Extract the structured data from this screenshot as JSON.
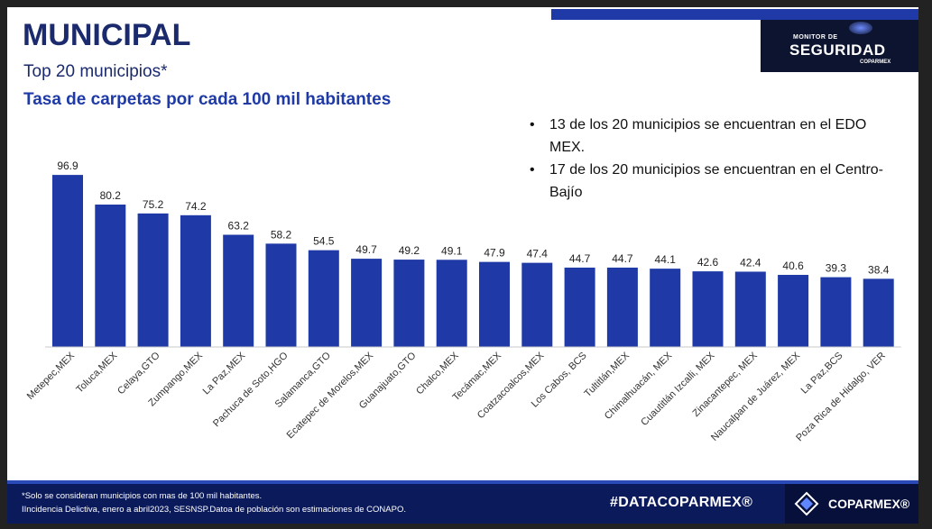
{
  "header": {
    "title": "MUNICIPAL",
    "subtitle": "Top 20 municipios*",
    "subtitle2": "Tasa de carpetas por cada 100 mil habitantes"
  },
  "logo": {
    "line1": "MONITOR DE",
    "line2": "SEGURIDAD",
    "line3": "COPARMEX"
  },
  "bullets": [
    "13 de los 20 municipios se encuentran en el EDO MEX.",
    "17 de los 20 municipios se encuentran en el Centro-Bajío"
  ],
  "bullet_symbol": "•",
  "footer": {
    "note1": "*Solo se consideran municipios con mas de 100 mil habitantes.",
    "note2": "IIncidencia Delictiva, enero a abril2023, SESNSP.Datoa de población son estimaciones de CONAPO.",
    "datacoparmex": "#DATACOPARMEX®",
    "brand": "COPARMEX®"
  },
  "colors": {
    "bar": "#1f3aa6",
    "title": "#1a2a6c"
  },
  "chart_data": {
    "type": "bar",
    "title": "Tasa de carpetas por cada 100 mil habitantes",
    "xlabel": "",
    "ylabel": "",
    "ylim": [
      0,
      100
    ],
    "grid": false,
    "categories": [
      "Metepec,MEX",
      "Toluca,MEX",
      "Celaya,GTO",
      "Zumpango,MEX",
      "La Paz,MEX",
      "Pachuca de Soto,HGO",
      "Salamanca,GTO",
      "Ecatepec de Morelos,MEX",
      "Guanajuato,GTO",
      "Chalco,MEX",
      "Tecámac,MEX",
      "Coatzacoalcos,MEX",
      "Los Cabos, BCS",
      "Tultitlán,MEX",
      "Chimalhuacán, MEX",
      "Cuautitlán Izcalli, MEX",
      "Zinacantepec, MEX",
      "Naucalpan de Juárez, MEX",
      "La Paz,BCS",
      "Poza Rica de Hidalgo, VER"
    ],
    "values": [
      96.9,
      80.2,
      75.2,
      74.2,
      63.2,
      58.2,
      54.5,
      49.7,
      49.2,
      49.1,
      47.9,
      47.4,
      44.7,
      44.7,
      44.1,
      42.6,
      42.4,
      40.6,
      39.3,
      38.4
    ],
    "labels": [
      "96.9",
      "80.2",
      "75.2",
      "74.2",
      "63.2",
      "58.2",
      "54.5",
      "49.7",
      "49.2",
      "49.1",
      "47.9",
      "47.4",
      "44.7",
      "44.7",
      "44.1",
      "42.6",
      "42.4",
      "40.6",
      "39.3",
      "38.4"
    ]
  }
}
